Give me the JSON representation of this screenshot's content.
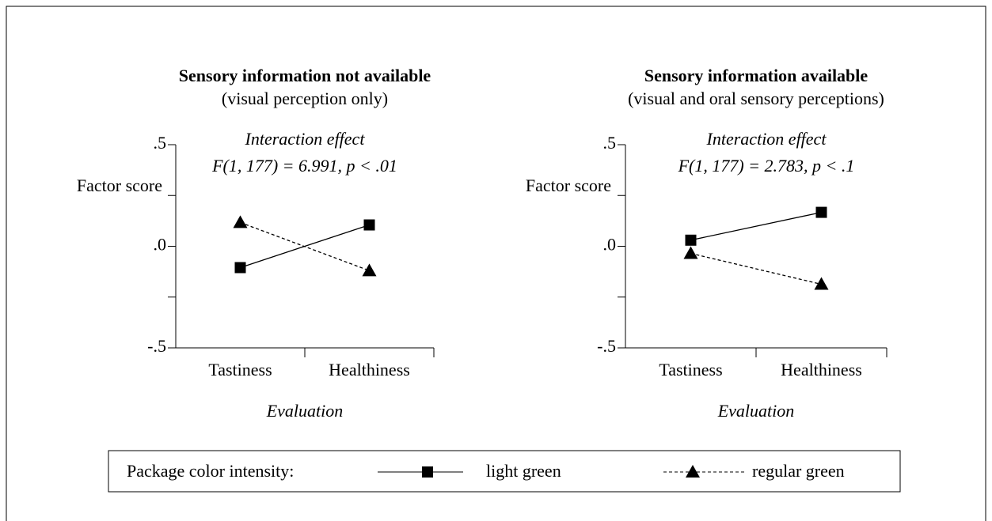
{
  "chart_data": [
    {
      "type": "line",
      "title": "Sensory information not available",
      "subtitle": "(visual perception only)",
      "annotation": [
        "Interaction effect",
        "F(1, 177) = 6.991, p < .01"
      ],
      "ylabel": "Factor score",
      "xlabel": "Evaluation",
      "categories": [
        "Tastiness",
        "Healthiness"
      ],
      "ylim": [
        -0.5,
        0.5
      ],
      "yticks": [
        {
          "value": 0.5,
          "label": ".5"
        },
        {
          "value": 0,
          "label": ".0"
        },
        {
          "value": -0.5,
          "label": "-.5"
        }
      ],
      "yminor": [
        0.25,
        -0.25
      ],
      "series": [
        {
          "color": "#000",
          "values": [
            -0.105,
            0.105
          ]
        },
        {
          "color": "#000",
          "values": [
            0.117,
            -0.12
          ]
        }
      ]
    },
    {
      "type": "line",
      "title": "Sensory information available",
      "subtitle": "(visual and oral sensory perceptions)",
      "annotation": [
        "Interaction effect",
        "F(1, 177) = 2.783, p < .1"
      ],
      "ylabel": "Factor score",
      "xlabel": "Evaluation",
      "categories": [
        "Tastiness",
        "Healthiness"
      ],
      "ylim": [
        -0.5,
        0.5
      ],
      "yticks": [
        {
          "value": 0.5,
          "label": ".5"
        },
        {
          "value": 0,
          "label": ".0"
        },
        {
          "value": -0.5,
          "label": "-.5"
        }
      ],
      "yminor": [
        0.25,
        -0.25
      ],
      "series": [
        {
          "color": "#000",
          "values": [
            0.03,
            0.167
          ]
        },
        {
          "color": "#000",
          "values": [
            -0.035,
            -0.187
          ]
        }
      ]
    }
  ],
  "legend": {
    "title": "Package color intensity:",
    "entries": [
      {
        "name": "light green",
        "marker": "square",
        "dash": false
      },
      {
        "name": "regular green",
        "marker": "triangle",
        "dash": true
      }
    ]
  }
}
